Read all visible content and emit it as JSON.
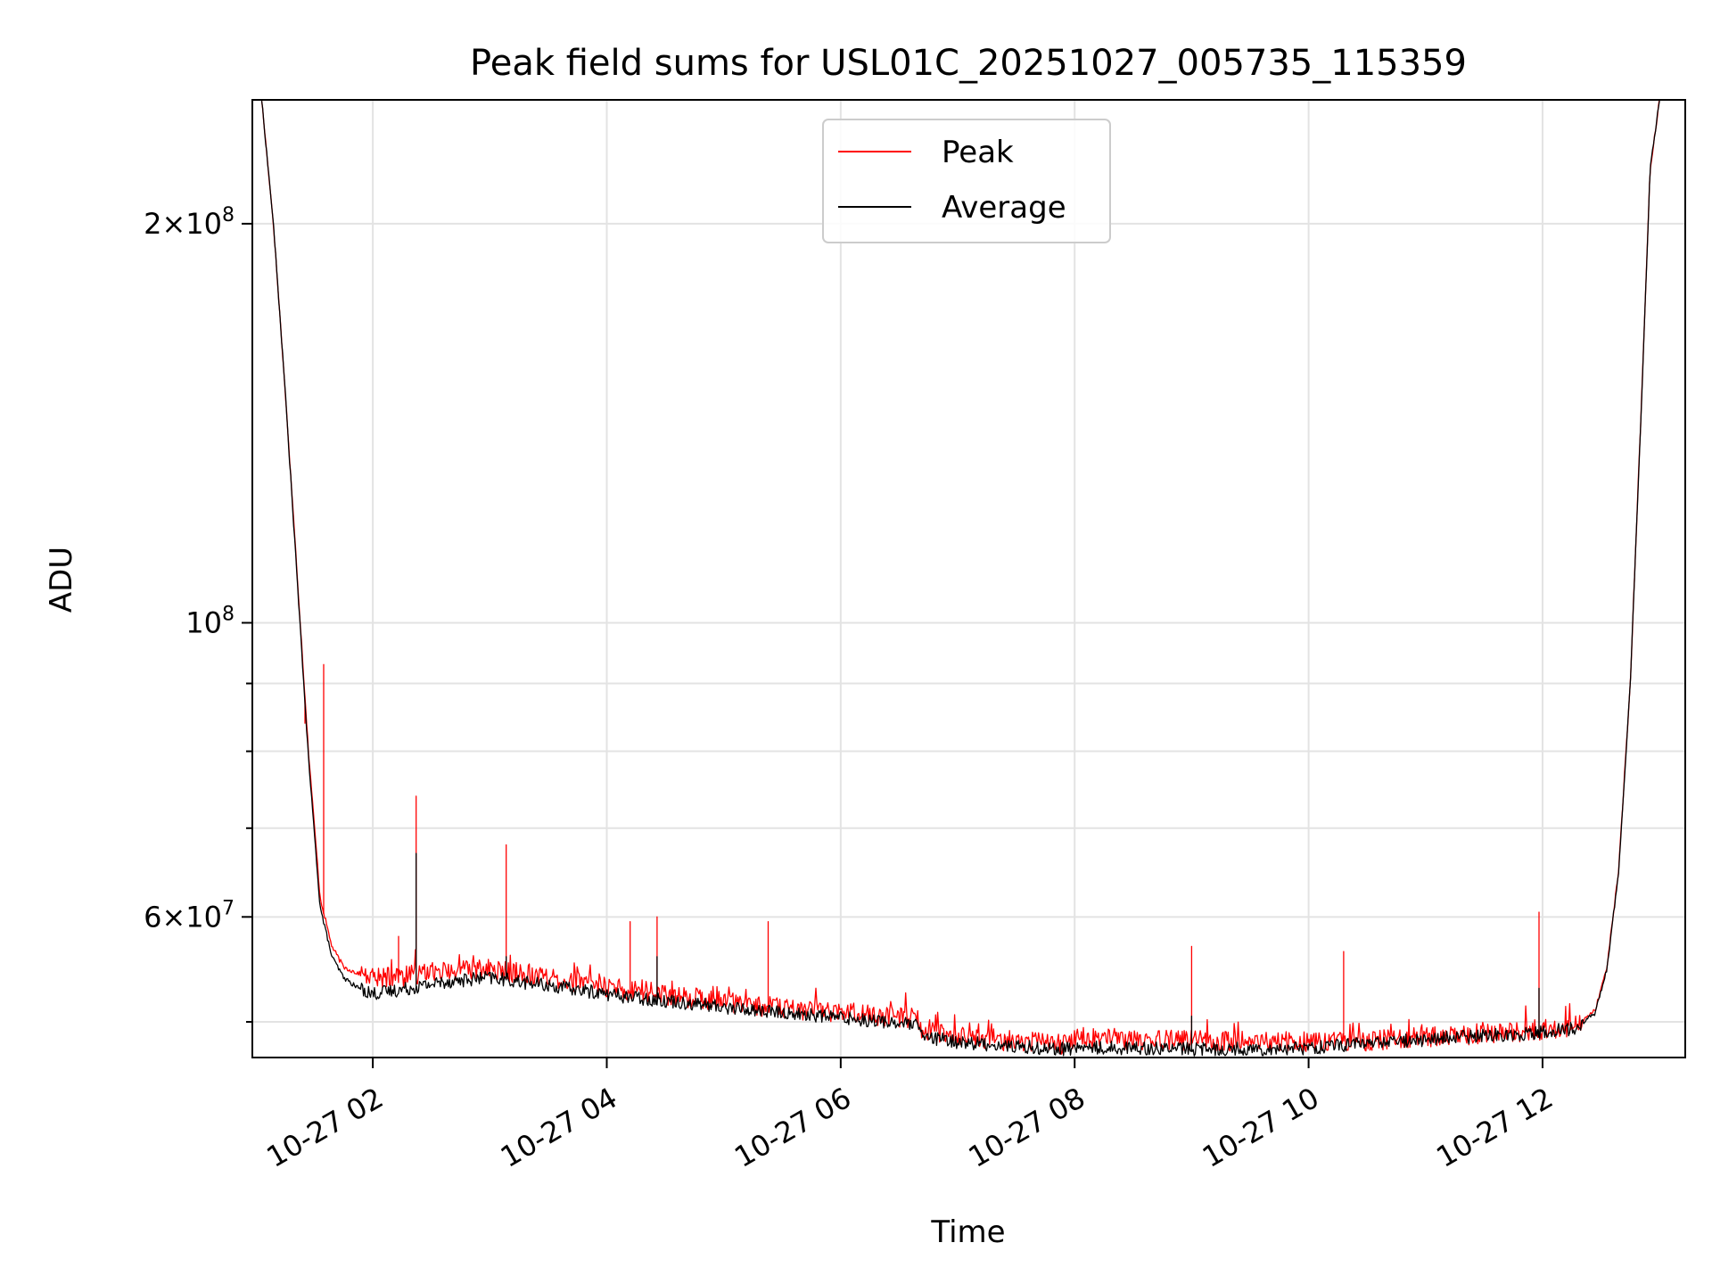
{
  "chart_data": {
    "type": "line",
    "title": "Peak field sums for USL01C_20251027_005735_115359",
    "xlabel": "Time",
    "ylabel": "ADU",
    "yscale": "log",
    "xlim": [
      0.97,
      13.22
    ],
    "ylim": [
      47000000,
      248000000
    ],
    "grid": true,
    "legend_position": "upper center",
    "x_ticks": [
      {
        "value": 2,
        "label": "10-27 02"
      },
      {
        "value": 4,
        "label": "10-27 04"
      },
      {
        "value": 6,
        "label": "10-27 06"
      },
      {
        "value": 8,
        "label": "10-27 08"
      },
      {
        "value": 10,
        "label": "10-27 10"
      },
      {
        "value": 12,
        "label": "10-27 12"
      }
    ],
    "y_major_ticks": [
      {
        "value": 60000000,
        "mantissa": "6",
        "exponent": "7"
      },
      {
        "value": 100000000,
        "mantissa": "",
        "exponent": "8"
      },
      {
        "value": 200000000,
        "mantissa": "2",
        "exponent": "8"
      }
    ],
    "y_minor_ticks": [
      50000000,
      70000000,
      80000000,
      90000000
    ],
    "series": [
      {
        "name": "Peak",
        "color": "#ff0000",
        "baseline": {
          "x": [
            1.05,
            1.15,
            1.25,
            1.35,
            1.45,
            1.55,
            1.65,
            1.75,
            1.85,
            2.0,
            2.3,
            2.6,
            3.0,
            3.4,
            3.8,
            4.2,
            4.6,
            5.0,
            5.5,
            6.0,
            6.5,
            6.65,
            6.7,
            7.0,
            7.5,
            7.9,
            8.0,
            8.5,
            9.0,
            9.5,
            10.0,
            10.5,
            11.0,
            11.5,
            12.0,
            12.3,
            12.45,
            12.55,
            12.65,
            12.75,
            12.85,
            12.92,
            13.0
          ],
          "y": [
            248000000,
            200000000,
            150000000,
            110000000,
            80000000,
            62000000,
            57000000,
            55000000,
            54500000,
            54000000,
            54200000,
            54600000,
            54800000,
            54200000,
            53500000,
            52800000,
            52300000,
            51800000,
            51200000,
            50800000,
            50400000,
            50300000,
            49200000,
            48800000,
            48300000,
            48100000,
            48700000,
            48500000,
            48400000,
            48300000,
            48300000,
            48400000,
            48700000,
            49000000,
            49300000,
            49700000,
            51000000,
            55000000,
            65000000,
            90000000,
            150000000,
            220000000,
            248000000
          ]
        },
        "spikes": [
          {
            "x": 1.42,
            "y": 84000000
          },
          {
            "x": 1.58,
            "y": 93000000
          },
          {
            "x": 2.22,
            "y": 58000000
          },
          {
            "x": 2.37,
            "y": 74000000
          },
          {
            "x": 3.14,
            "y": 68000000
          },
          {
            "x": 4.2,
            "y": 59500000
          },
          {
            "x": 4.43,
            "y": 60000000
          },
          {
            "x": 5.38,
            "y": 59500000
          },
          {
            "x": 9.0,
            "y": 57000000
          },
          {
            "x": 10.3,
            "y": 56500000
          },
          {
            "x": 11.97,
            "y": 60500000
          }
        ]
      },
      {
        "name": "Average",
        "color": "#000000",
        "baseline": {
          "x": [
            1.05,
            1.15,
            1.25,
            1.35,
            1.45,
            1.55,
            1.65,
            1.75,
            1.85,
            2.0,
            2.3,
            2.6,
            3.0,
            3.4,
            3.8,
            4.2,
            4.6,
            5.0,
            5.5,
            6.0,
            6.5,
            6.65,
            6.7,
            7.0,
            7.5,
            7.9,
            8.0,
            8.5,
            9.0,
            9.5,
            10.0,
            10.5,
            11.0,
            11.5,
            12.0,
            12.3,
            12.45,
            12.55,
            12.65,
            12.75,
            12.85,
            12.92,
            13.0
          ],
          "y": [
            248000000,
            200000000,
            150000000,
            109000000,
            79000000,
            61000000,
            56000000,
            54000000,
            53200000,
            52500000,
            53000000,
            53600000,
            54000000,
            53400000,
            52800000,
            52200000,
            51800000,
            51300000,
            50800000,
            50400000,
            49900000,
            49700000,
            48700000,
            48300000,
            47900000,
            47700000,
            47800000,
            47800000,
            47700000,
            47700000,
            47800000,
            48200000,
            48500000,
            48800000,
            49100000,
            49500000,
            50800000,
            54800000,
            64800000,
            89800000,
            149800000,
            219800000,
            248000000
          ]
        },
        "spikes": [
          {
            "x": 2.37,
            "y": 67000000
          },
          {
            "x": 3.14,
            "y": 56000000
          },
          {
            "x": 4.43,
            "y": 56000000
          },
          {
            "x": 9.0,
            "y": 50500000
          },
          {
            "x": 11.97,
            "y": 53000000
          }
        ]
      }
    ]
  }
}
